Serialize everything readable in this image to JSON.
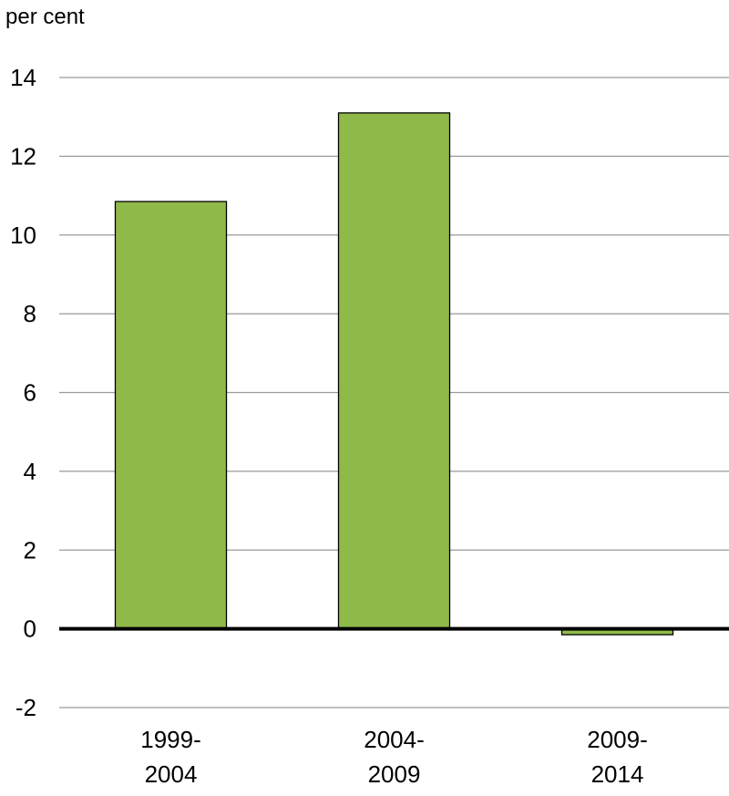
{
  "chart_data": {
    "type": "bar",
    "ylabel": "per cent",
    "categories": [
      [
        "1999-",
        "2004"
      ],
      [
        "2004-",
        "2009"
      ],
      [
        "2009-",
        "2014"
      ]
    ],
    "values": [
      10.85,
      13.1,
      -0.15
    ],
    "ylim": [
      -2,
      14
    ],
    "yticks": [
      "-2",
      "0",
      "2",
      "4",
      "6",
      "8",
      "10",
      "12",
      "14"
    ],
    "grid": true,
    "legend": "none",
    "colors": {
      "bar": "#8fba4a",
      "bar_stroke": "#000000",
      "grid": "#9a9a9a",
      "zero_line": "#000000"
    }
  }
}
